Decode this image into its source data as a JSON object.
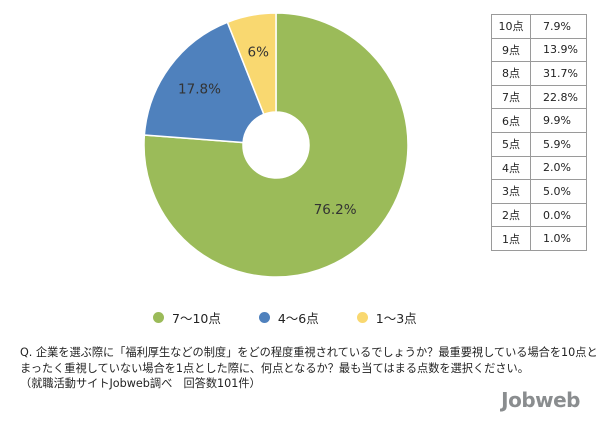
{
  "chart_data": [
    {
      "type": "pie",
      "categories": [
        "7〜10点",
        "4〜6点",
        "1〜3点"
      ],
      "values": [
        76.2,
        17.8,
        6
      ],
      "value_labels": [
        "76.2%",
        "17.8%",
        "6%"
      ],
      "colors": [
        "#9bbb59",
        "#4f81bd",
        "#f9d870"
      ],
      "legend_position": "bottom"
    },
    {
      "type": "table",
      "categories": [
        "10点",
        "9点",
        "8点",
        "7点",
        "6点",
        "5点",
        "4点",
        "3点",
        "2点",
        "1点"
      ],
      "values": [
        "7.9%",
        "13.9%",
        "31.7%",
        "22.8%",
        "9.9%",
        "5.9%",
        "2.0%",
        "5.0%",
        "0.0%",
        "1.0%"
      ]
    }
  ],
  "question": {
    "line1": "Q. 企業を選ぶ際に「福利厚生などの制度」をどの程度重視されているでしょうか？最重要視している場合を10点とし、",
    "line2": "まったく重視していない場合を1点とした際に、何点となるか？最も当てはまる点数を選択ください。",
    "line3": "（就職活動サイトJobweb調べ　回答数101件）"
  },
  "logo": {
    "text": "Jobweb"
  }
}
